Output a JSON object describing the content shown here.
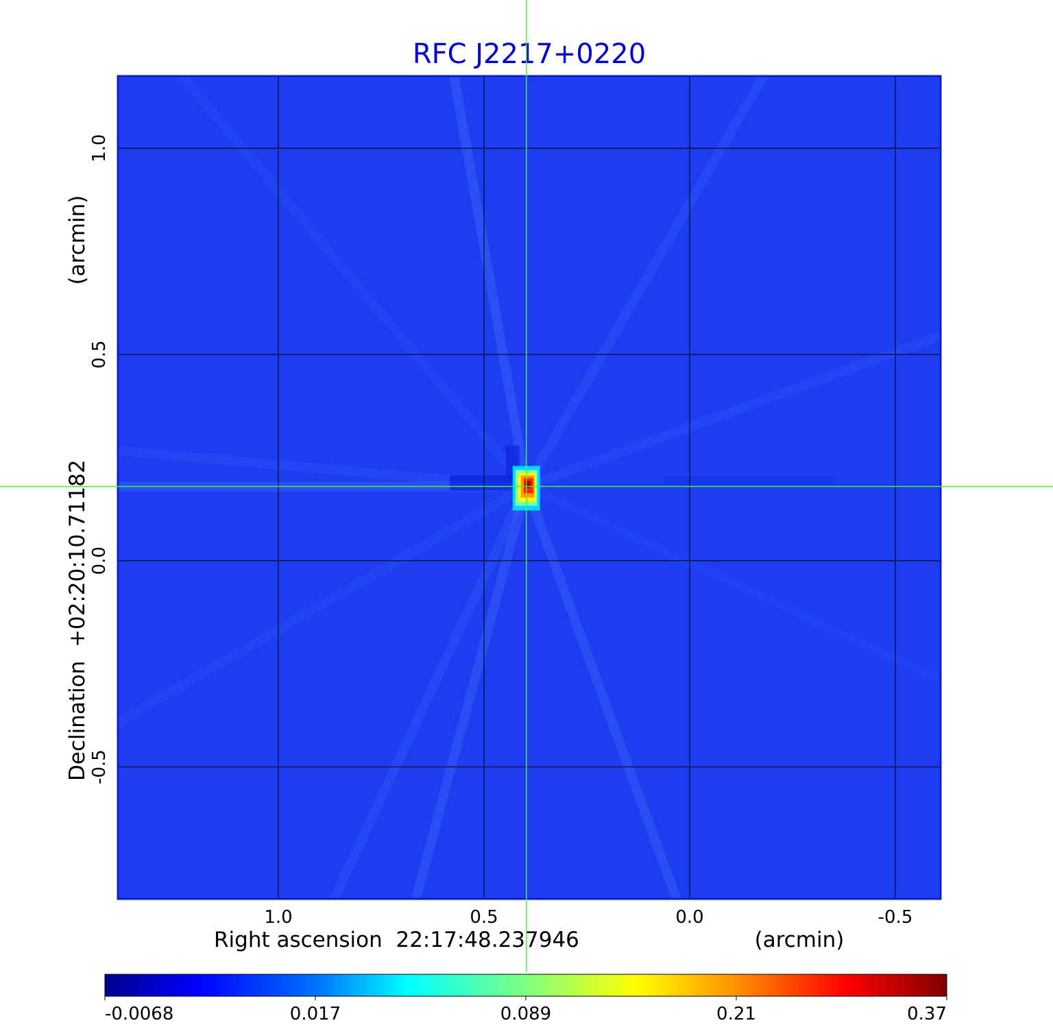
{
  "chart_data": {
    "type": "heatmap",
    "title": "RFC J2217+0220",
    "xlabel": "Right ascension  22:17:48.237946",
    "xlabel_units": "(arcmin)",
    "ylabel": "Declination  +02:20:10.71182",
    "ylabel_units": "(arcmin)",
    "x_ticks": [
      1.0,
      0.5,
      0.0,
      -0.5
    ],
    "x_tick_labels": [
      "1.0",
      "0.5",
      "0.0",
      "-0.5"
    ],
    "y_ticks": [
      1.0,
      0.5,
      0.0,
      -0.5
    ],
    "y_tick_labels": [
      "1.0",
      "0.5",
      "0.0",
      "-0.5"
    ],
    "xlim": [
      1.39,
      -0.61
    ],
    "ylim": [
      -0.82,
      1.175
    ],
    "x_reversed": true,
    "grid": true,
    "crosshair": {
      "x": 0.397,
      "y": 0.18
    },
    "peak": {
      "x": 0.397,
      "y": 0.18,
      "value": 0.37
    },
    "colorbar": {
      "colormap": "jet",
      "ticks": [
        -0.0068,
        0.017,
        0.089,
        0.21,
        0.37
      ],
      "tick_labels": [
        "-0.0068",
        "0.017",
        "0.089",
        "0.21",
        "0.37"
      ]
    },
    "colors": {
      "background": "#1e3cf0",
      "title": "#0000d0",
      "grid": "#000000",
      "crosshair": "#33ff33"
    }
  }
}
